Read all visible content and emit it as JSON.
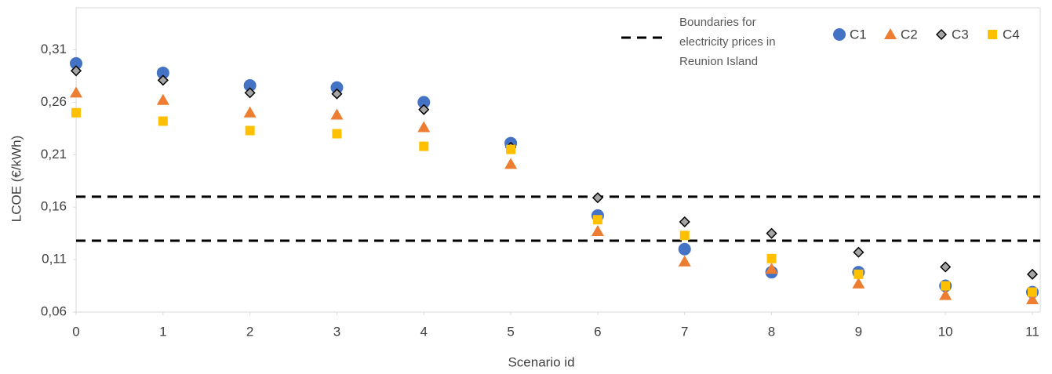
{
  "chart_data": {
    "type": "scatter",
    "x_label": "Scenario id",
    "y_label": "LCOE (€/kWh)",
    "xlim": [
      0,
      11
    ],
    "xticks": [
      0,
      1,
      2,
      3,
      4,
      5,
      6,
      7,
      8,
      9,
      10,
      11
    ],
    "ylim": [
      0.06,
      0.35
    ],
    "yticks": [
      {
        "value": 0.06,
        "label": "0,06"
      },
      {
        "value": 0.11,
        "label": "0,11"
      },
      {
        "value": 0.16,
        "label": "0,16"
      },
      {
        "value": 0.21,
        "label": "0,21"
      },
      {
        "value": 0.26,
        "label": "0,26"
      },
      {
        "value": 0.31,
        "label": "0,31"
      }
    ],
    "grid": false,
    "x": [
      0,
      1,
      2,
      3,
      4,
      5,
      6,
      7,
      8,
      9,
      10,
      11
    ],
    "series": [
      {
        "name": "C1",
        "color": "#4472c4",
        "marker": "circle",
        "values": [
          0.297,
          0.288,
          0.276,
          0.274,
          0.26,
          0.221,
          0.152,
          0.12,
          0.098,
          0.098,
          0.085,
          0.079
        ]
      },
      {
        "name": "C2",
        "color": "#ed7d31",
        "marker": "triangle",
        "values": [
          0.269,
          0.262,
          0.25,
          0.248,
          0.236,
          0.201,
          0.137,
          0.108,
          0.101,
          0.087,
          0.076,
          0.072
        ]
      },
      {
        "name": "C3",
        "color": "#a5a5a5",
        "marker": "diamond",
        "values": [
          0.29,
          0.281,
          0.269,
          0.268,
          0.253,
          0.217,
          0.169,
          0.146,
          0.135,
          0.117,
          0.103,
          0.096
        ]
      },
      {
        "name": "C4",
        "color": "#ffc000",
        "marker": "square",
        "values": [
          0.25,
          0.242,
          0.233,
          0.23,
          0.218,
          0.215,
          0.148,
          0.133,
          0.111,
          0.096,
          0.085,
          0.079
        ]
      }
    ],
    "reference_lines": {
      "name": "Boundaries for electricity prices in Reunion Island",
      "color": "#000000",
      "style": "dashed",
      "values": [
        0.17,
        0.128
      ]
    }
  }
}
